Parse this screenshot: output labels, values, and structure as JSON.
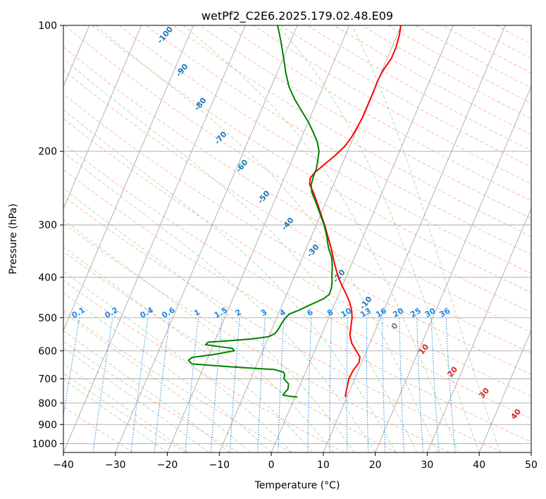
{
  "chart_data": {
    "type": "line",
    "title": "wetPf2_C2E6.2025.179.02.48.E09",
    "xlabel": "Temperature (°C)",
    "ylabel": "Pressure (hPa)",
    "xlim": [
      -40,
      50
    ],
    "ylim": [
      1050,
      100
    ],
    "y_scale": "log",
    "grid": true,
    "x_ticks": [
      -40,
      -30,
      -20,
      -10,
      0,
      10,
      20,
      30,
      40,
      50
    ],
    "y_ticks": [
      100,
      200,
      300,
      400,
      500,
      600,
      700,
      800,
      900,
      1000
    ],
    "skew": 35,
    "colors": {
      "temperature": "#ff0000",
      "dewpoint": "#008000",
      "isotherm": "#aaaaaa",
      "dry_adiabat": "#ff9a7a",
      "moist_adiabat": "#8fcf8f",
      "mixing_ratio": "#1e88e5",
      "saturation_label": "#1f77b4",
      "thetae_label": "#d62728"
    },
    "series": [
      {
        "name": "",
        "color": "#ff0000",
        "points": [
          [
            774,
            9.7
          ],
          [
            760,
            9.5
          ],
          [
            730,
            9.2
          ],
          [
            700,
            8.9
          ],
          [
            670,
            9.0
          ],
          [
            640,
            9.5
          ],
          [
            620,
            9.2
          ],
          [
            600,
            8.0
          ],
          [
            575,
            6.5
          ],
          [
            550,
            5.5
          ],
          [
            520,
            4.9
          ],
          [
            500,
            4.5
          ],
          [
            480,
            3.8
          ],
          [
            460,
            2.8
          ],
          [
            440,
            1.5
          ],
          [
            420,
            0.0
          ],
          [
            400,
            -1.5
          ],
          [
            370,
            -3.4
          ],
          [
            340,
            -5.3
          ],
          [
            320,
            -6.8
          ],
          [
            300,
            -8.4
          ],
          [
            270,
            -11.2
          ],
          [
            250,
            -13.3
          ],
          [
            240,
            -14.6
          ],
          [
            232,
            -15.0
          ],
          [
            225,
            -14.6
          ],
          [
            215,
            -13.4
          ],
          [
            205,
            -12.1
          ],
          [
            195,
            -11.0
          ],
          [
            185,
            -10.4
          ],
          [
            175,
            -10.1
          ],
          [
            165,
            -9.9
          ],
          [
            155,
            -9.9
          ],
          [
            145,
            -9.9
          ],
          [
            135,
            -10.0
          ],
          [
            128,
            -9.8
          ],
          [
            120,
            -9.2
          ],
          [
            113,
            -9.2
          ],
          [
            105,
            -9.6
          ],
          [
            100,
            -10.1
          ]
        ]
      },
      {
        "name": "",
        "color": "#008000",
        "points": [
          [
            774,
            0.5
          ],
          [
            770,
            -1.3
          ],
          [
            765,
            -2.5
          ],
          [
            740,
            -2.0
          ],
          [
            720,
            -2.3
          ],
          [
            700,
            -3.6
          ],
          [
            685,
            -3.8
          ],
          [
            675,
            -4.2
          ],
          [
            665,
            -6.2
          ],
          [
            655,
            -15.0
          ],
          [
            645,
            -22.5
          ],
          [
            632,
            -23.5
          ],
          [
            622,
            -23.0
          ],
          [
            612,
            -19.0
          ],
          [
            600,
            -15.5
          ],
          [
            592,
            -16.0
          ],
          [
            586,
            -18.8
          ],
          [
            580,
            -21.5
          ],
          [
            572,
            -21.2
          ],
          [
            568,
            -17.5
          ],
          [
            562,
            -13.0
          ],
          [
            555,
            -10.0
          ],
          [
            545,
            -9.0
          ],
          [
            530,
            -8.7
          ],
          [
            515,
            -8.6
          ],
          [
            500,
            -8.3
          ],
          [
            490,
            -7.9
          ],
          [
            480,
            -6.4
          ],
          [
            465,
            -4.5
          ],
          [
            450,
            -2.5
          ],
          [
            440,
            -1.8
          ],
          [
            425,
            -1.9
          ],
          [
            410,
            -2.3
          ],
          [
            395,
            -2.9
          ],
          [
            380,
            -3.4
          ],
          [
            360,
            -4.3
          ],
          [
            340,
            -5.8
          ],
          [
            320,
            -7.0
          ],
          [
            300,
            -8.5
          ],
          [
            270,
            -11.4
          ],
          [
            250,
            -13.6
          ],
          [
            240,
            -14.3
          ],
          [
            230,
            -14.5
          ],
          [
            220,
            -14.6
          ],
          [
            210,
            -15.0
          ],
          [
            200,
            -15.5
          ],
          [
            190,
            -16.6
          ],
          [
            180,
            -18.2
          ],
          [
            170,
            -20.0
          ],
          [
            160,
            -22.2
          ],
          [
            150,
            -24.5
          ],
          [
            140,
            -26.6
          ],
          [
            130,
            -28.3
          ],
          [
            120,
            -29.9
          ],
          [
            110,
            -31.7
          ],
          [
            105,
            -32.7
          ],
          [
            100,
            -33.8
          ]
        ]
      }
    ],
    "saturation_labels": [
      "-100",
      "-90",
      "-80",
      "-70",
      "-60",
      "-50",
      "-40",
      "-30",
      "-20",
      "-10"
    ],
    "mixing_ratio_labels": [
      "0.1",
      "0.2",
      "0.4",
      "0.6",
      "1",
      "1.5",
      "2",
      "3",
      "4",
      "6",
      "8",
      "10",
      "13",
      "16",
      "20",
      "25",
      "30",
      "36"
    ],
    "thetae_labels": [
      "0",
      "10",
      "20",
      "30",
      "40"
    ]
  }
}
